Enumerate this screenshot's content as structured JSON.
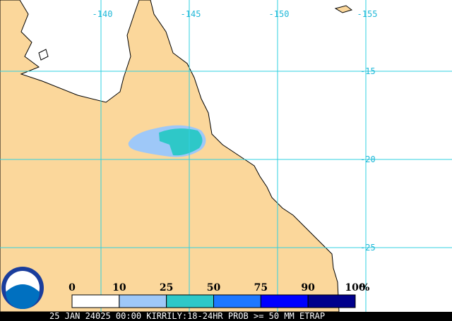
{
  "map": {
    "lon_ticks": [
      -140,
      -145,
      -150,
      -155
    ],
    "lat_ticks": [
      -15,
      -20,
      -25
    ],
    "legend": {
      "ticks": [
        0,
        10,
        25,
        50,
        75,
        90,
        100
      ],
      "unit": "%",
      "colors": [
        "#ffffff",
        "#9ec8f8",
        "#2ec8c8",
        "#1e78ff",
        "#0000ff",
        "#00008c"
      ]
    },
    "logo": "NOAA",
    "footer": "25 JAN 24025 00:00 KIRRILY:18-24HR PROB >= 50 MM ETRAP"
  }
}
